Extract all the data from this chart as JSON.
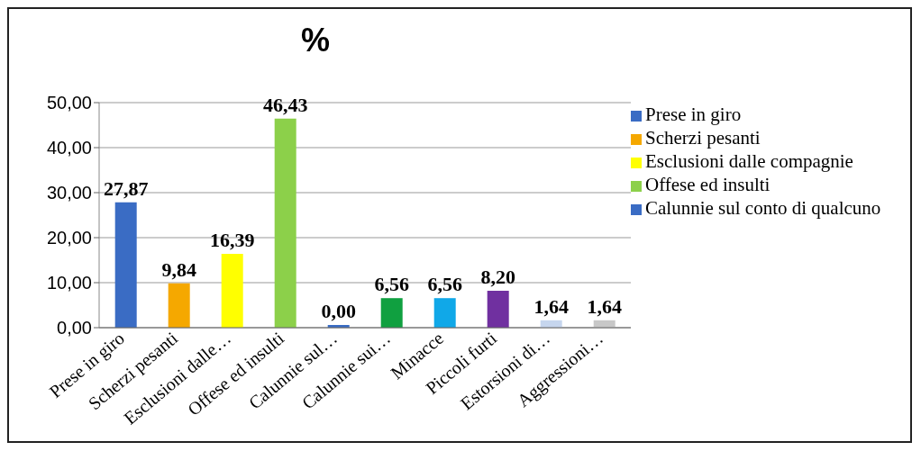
{
  "chart_data": {
    "type": "bar",
    "title": "%",
    "stacked": true,
    "categories": [
      "Prese in giro",
      "Scherzi pesanti",
      "Esclusioni dalle…",
      "Offese ed insulti",
      "Calunnie sul…",
      "Calunnie sui…",
      "Minacce",
      "Piccoli furti",
      "Estorsioni di…",
      "Aggressioni…"
    ],
    "series": [
      {
        "name": "Prese in giro",
        "color": "#3a6cc4",
        "values": [
          27.87,
          null,
          null,
          null,
          null,
          null,
          null,
          null,
          null,
          null
        ],
        "value_labels": [
          "27,87",
          null,
          null,
          null,
          null,
          null,
          null,
          null,
          null,
          null
        ]
      },
      {
        "name": "Scherzi pesanti",
        "color": "#f5a800",
        "values": [
          null,
          9.84,
          null,
          null,
          null,
          null,
          null,
          null,
          null,
          null
        ],
        "value_labels": [
          null,
          "9,84",
          null,
          null,
          null,
          null,
          null,
          null,
          null,
          null
        ]
      },
      {
        "name": "Esclusioni dalle compagnie",
        "color": "#ffff00",
        "values": [
          null,
          null,
          16.39,
          null,
          null,
          null,
          null,
          null,
          null,
          null
        ],
        "value_labels": [
          null,
          null,
          "16,39",
          null,
          null,
          null,
          null,
          null,
          null,
          null
        ]
      },
      {
        "name": "Offese ed insulti",
        "color": "#8cd04a",
        "values": [
          null,
          null,
          null,
          46.43,
          null,
          null,
          null,
          null,
          null,
          null
        ],
        "value_labels": [
          null,
          null,
          null,
          "46,43",
          null,
          null,
          null,
          null,
          null,
          null
        ]
      },
      {
        "name": "Calunnie sul conto di qualcuno",
        "color": "#3a6cc4",
        "values": [
          null,
          null,
          null,
          null,
          0,
          null,
          null,
          null,
          null,
          null
        ],
        "value_labels": [
          null,
          null,
          null,
          null,
          "0,00",
          null,
          null,
          null,
          null,
          null
        ]
      },
      {
        "color": "#10a040",
        "values": [
          null,
          null,
          null,
          null,
          null,
          6.56,
          null,
          null,
          null,
          null
        ],
        "value_labels": [
          null,
          null,
          null,
          null,
          null,
          "6,56",
          null,
          null,
          null,
          null
        ]
      },
      {
        "color": "#10a8e8",
        "values": [
          null,
          null,
          null,
          null,
          null,
          null,
          6.56,
          null,
          null,
          null
        ],
        "value_labels": [
          null,
          null,
          null,
          null,
          null,
          null,
          "6,56",
          null,
          null,
          null
        ]
      },
      {
        "color": "#7030a0",
        "values": [
          null,
          null,
          null,
          null,
          null,
          null,
          null,
          8.2,
          null,
          null
        ],
        "value_labels": [
          null,
          null,
          null,
          null,
          null,
          null,
          null,
          "8,20",
          null,
          null
        ]
      },
      {
        "color": "#c6d6ee",
        "values": [
          null,
          null,
          null,
          null,
          null,
          null,
          null,
          null,
          1.64,
          null
        ],
        "value_labels": [
          null,
          null,
          null,
          null,
          null,
          null,
          null,
          null,
          "1,64",
          null
        ]
      },
      {
        "color": "#c8c8c8",
        "values": [
          null,
          null,
          null,
          null,
          null,
          null,
          null,
          null,
          null,
          1.64
        ],
        "value_labels": [
          null,
          null,
          null,
          null,
          null,
          null,
          null,
          null,
          null,
          "1,64"
        ]
      }
    ],
    "ylim": [
      0,
      50
    ],
    "yticks": [
      {
        "value": 0,
        "label": "0,00"
      },
      {
        "value": 10,
        "label": "10,00"
      },
      {
        "value": 20,
        "label": "20,00"
      },
      {
        "value": 30,
        "label": "30,00"
      },
      {
        "value": 40,
        "label": "40,00"
      },
      {
        "value": 50,
        "label": "50,00"
      }
    ],
    "grid": "y",
    "legend": "right"
  }
}
